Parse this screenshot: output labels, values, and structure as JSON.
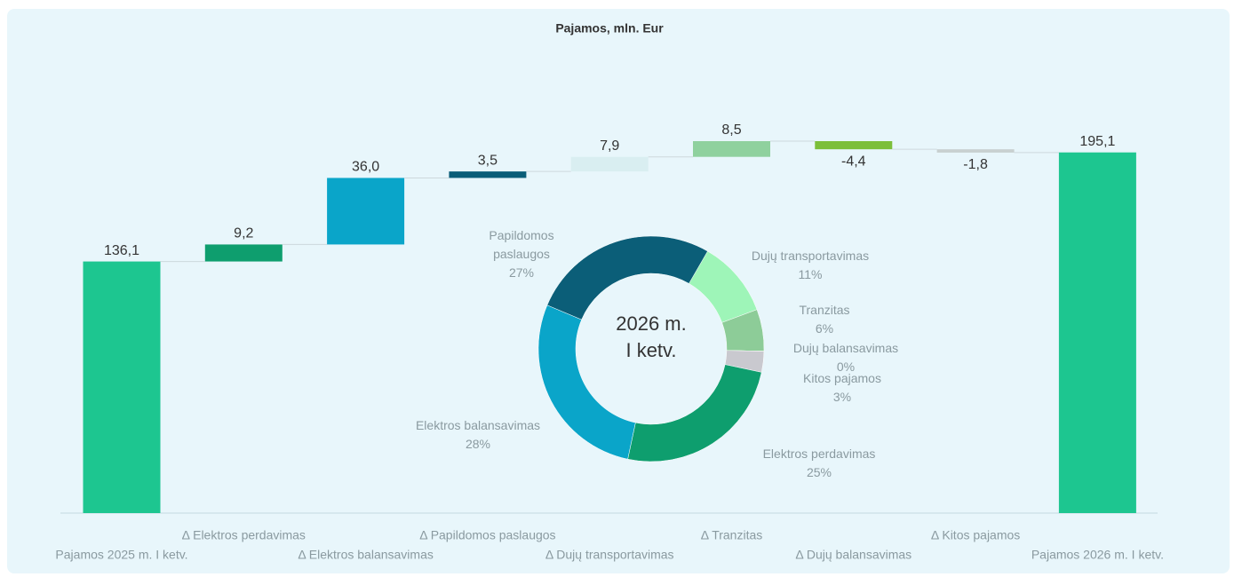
{
  "chart_data": [
    {
      "type": "waterfall",
      "title": "Pajamos, mln. Eur",
      "categories": [
        "Pajamos 2025 m. I ketv.",
        "Δ Elektros perdavimas",
        "Δ Elektros balansavimas",
        "Δ Papildomos paslaugos",
        "Δ Dujų transportavimas",
        "Δ Tranzitas",
        "Δ Dujų balansavimas",
        "Δ Kitos pajamos",
        "Pajamos 2026 m. I ketv."
      ],
      "values": [
        136.1,
        9.2,
        36.0,
        3.5,
        7.9,
        8.5,
        -4.4,
        -1.8,
        195.1
      ],
      "value_labels": [
        "136,1",
        "9,2",
        "36,0",
        "3,5",
        "7,9",
        "8,5",
        "-4,4",
        "-1,8",
        "195,1"
      ],
      "measure": [
        "absolute",
        "relative",
        "relative",
        "relative",
        "relative",
        "relative",
        "relative",
        "relative",
        "absolute"
      ],
      "colors": [
        "#1dc690",
        "#0e9e6e",
        "#0aa5c9",
        "#0b5e78",
        "#d9eef1",
        "#8fd19e",
        "#7cbf3a",
        "#c8d0d0",
        "#1dc690"
      ]
    },
    {
      "type": "donut",
      "center_label": "2026 m. I ketv.",
      "categories": [
        "Dujų transportavimas",
        "Tranzitas",
        "Dujų balansavimas",
        "Kitos pajamos",
        "Elektros perdavimas",
        "Elektros balansavimas",
        "Papildomos paslaugos"
      ],
      "values": [
        11,
        6,
        0,
        3,
        25,
        28,
        27
      ],
      "value_labels": [
        "11%",
        "6%",
        "0%",
        "3%",
        "25%",
        "28%",
        "27%"
      ],
      "colors": [
        "#9ef5b8",
        "#8dcc98",
        "#5b8a6a",
        "#c9c9cf",
        "#0e9e6e",
        "#0aa5c9",
        "#0b5e78"
      ]
    }
  ]
}
